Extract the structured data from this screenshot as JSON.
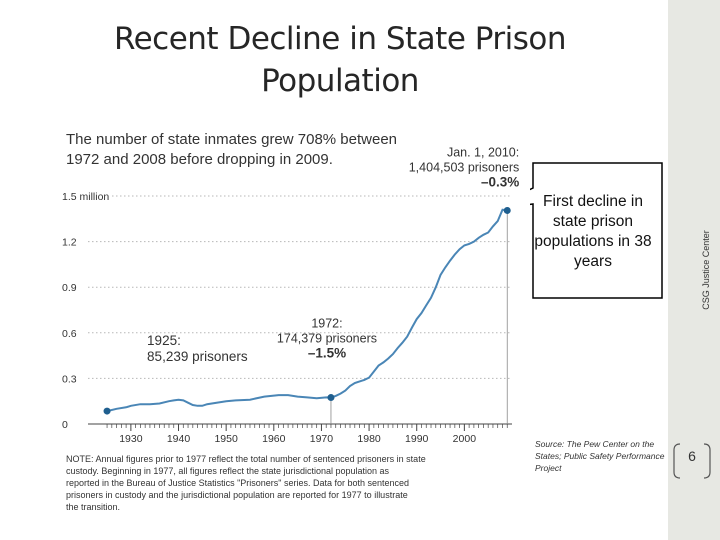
{
  "slide": {
    "title": "Recent Decline in State Prison Population",
    "sidebar_label": "CSG Justice Center",
    "callout_text": "First decline in state prison populations in 38 years",
    "source": "Source: The Pew Center on the States; Public Safety Performance Project",
    "page_number": "6"
  },
  "chart_data": {
    "type": "line",
    "title": "The number of state inmates grew 708% between 1972 and 2008 before dropping in 2009.",
    "xlabel": "",
    "ylabel": "",
    "xlim": [
      1925,
      2010
    ],
    "ylim": [
      0,
      1.5
    ],
    "y_ticks": [
      "1.5 million",
      "1.2",
      "0.9",
      "0.6",
      "0.3",
      "0"
    ],
    "x_ticks": [
      "1930",
      "1940",
      "1950",
      "1960",
      "1970",
      "1980",
      "1990",
      "2000"
    ],
    "grid": "horizontal dotted",
    "series": [
      {
        "color": "#4a86b6",
        "points": [
          [
            1925,
            0.085
          ],
          [
            1927,
            0.1
          ],
          [
            1929,
            0.11
          ],
          [
            1930,
            0.12
          ],
          [
            1932,
            0.13
          ],
          [
            1934,
            0.13
          ],
          [
            1936,
            0.135
          ],
          [
            1938,
            0.15
          ],
          [
            1939,
            0.155
          ],
          [
            1940,
            0.16
          ],
          [
            1941,
            0.155
          ],
          [
            1942,
            0.14
          ],
          [
            1943,
            0.125
          ],
          [
            1944,
            0.12
          ],
          [
            1945,
            0.12
          ],
          [
            1946,
            0.13
          ],
          [
            1948,
            0.14
          ],
          [
            1950,
            0.15
          ],
          [
            1952,
            0.155
          ],
          [
            1955,
            0.16
          ],
          [
            1958,
            0.18
          ],
          [
            1961,
            0.19
          ],
          [
            1963,
            0.19
          ],
          [
            1965,
            0.18
          ],
          [
            1967,
            0.175
          ],
          [
            1969,
            0.17
          ],
          [
            1971,
            0.175
          ],
          [
            1972,
            0.174
          ],
          [
            1973,
            0.185
          ],
          [
            1974,
            0.2
          ],
          [
            1975,
            0.22
          ],
          [
            1976,
            0.25
          ],
          [
            1977,
            0.27
          ],
          [
            1978,
            0.28
          ],
          [
            1979,
            0.29
          ],
          [
            1980,
            0.305
          ],
          [
            1981,
            0.345
          ],
          [
            1982,
            0.385
          ],
          [
            1983,
            0.405
          ],
          [
            1984,
            0.43
          ],
          [
            1985,
            0.46
          ],
          [
            1986,
            0.5
          ],
          [
            1987,
            0.535
          ],
          [
            1988,
            0.575
          ],
          [
            1989,
            0.635
          ],
          [
            1990,
            0.69
          ],
          [
            1991,
            0.73
          ],
          [
            1992,
            0.78
          ],
          [
            1993,
            0.83
          ],
          [
            1994,
            0.9
          ],
          [
            1995,
            0.98
          ],
          [
            1996,
            1.03
          ],
          [
            1997,
            1.075
          ],
          [
            1998,
            1.115
          ],
          [
            1999,
            1.15
          ],
          [
            2000,
            1.175
          ],
          [
            2001,
            1.185
          ],
          [
            2002,
            1.2
          ],
          [
            2003,
            1.225
          ],
          [
            2004,
            1.245
          ],
          [
            2005,
            1.26
          ],
          [
            2006,
            1.3
          ],
          [
            2007,
            1.335
          ],
          [
            2008,
            1.41
          ],
          [
            2009,
            1.405
          ]
        ]
      }
    ],
    "highlights": [
      {
        "x": 1925,
        "y": 0.085,
        "label_lines": [
          "1925:",
          "85,239 prisoners"
        ]
      },
      {
        "x": 1972,
        "y": 0.174,
        "label_lines": [
          "1972:",
          "174,379 prisoners",
          "–1.5%"
        ]
      },
      {
        "x": 2009,
        "y": 1.405,
        "label_lines": [
          "Jan. 1, 2010:",
          "1,404,503 prisoners",
          "–0.3%"
        ]
      }
    ],
    "note": "NOTE: Annual figures prior to 1977 reflect the total number of sentenced prisoners in state custody. Beginning in 1977, all figures reflect the state jurisdictional population as reported in the Bureau of Justice Statistics \"Prisoners\" series. Data for both sentenced prisoners in custody and the jurisdictional population are reported for 1977 to illustrate the transition."
  }
}
